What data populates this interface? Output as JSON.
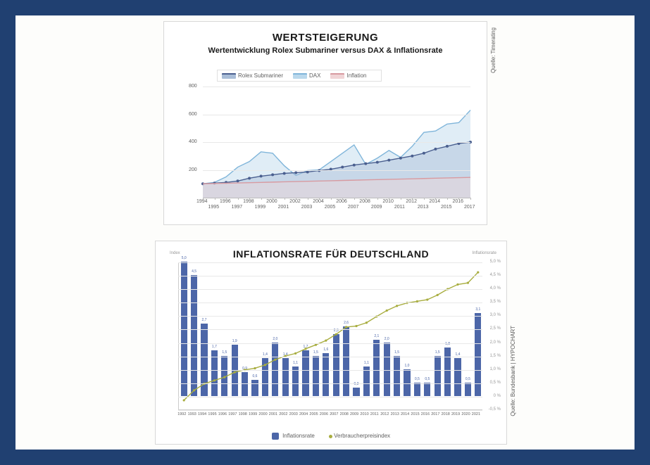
{
  "frame": {
    "border_color": "#204071",
    "bg": "#fdfdfb"
  },
  "top_chart": {
    "type": "area",
    "title": "WERTSTEIGERUNG",
    "subtitle": "Wertentwicklung Rolex Submariner versus DAX & Inflationsrate",
    "source": "Quelle: Timerating",
    "ylim": [
      0,
      800
    ],
    "yticks": [
      200,
      400,
      600,
      800
    ],
    "years": [
      1994,
      1995,
      1996,
      1997,
      1998,
      1999,
      2000,
      2001,
      2002,
      2003,
      2004,
      2005,
      2006,
      2007,
      2008,
      2009,
      2010,
      2011,
      2012,
      2013,
      2014,
      2015,
      2016,
      2017
    ],
    "series": [
      {
        "name": "Rolex Submariner",
        "color_line": "#4a5f8f",
        "color_fill": "#a9bdd7",
        "values": [
          100,
          105,
          110,
          120,
          140,
          155,
          165,
          175,
          180,
          185,
          195,
          205,
          220,
          235,
          245,
          255,
          270,
          285,
          300,
          320,
          350,
          370,
          390,
          400
        ],
        "markers": true
      },
      {
        "name": "DAX",
        "color_line": "#7fb5da",
        "color_fill": "#bad8ec",
        "values": [
          100,
          110,
          150,
          220,
          260,
          330,
          320,
          230,
          160,
          195,
          200,
          260,
          320,
          380,
          240,
          285,
          340,
          290,
          370,
          470,
          480,
          530,
          540,
          630
        ],
        "markers": false
      },
      {
        "name": "Inflation",
        "color_line": "#d89aa0",
        "color_fill": "#f0d4d6",
        "values": [
          100,
          102,
          104,
          106,
          108,
          110,
          112,
          114,
          116,
          118,
          120,
          122,
          124,
          126,
          128,
          130,
          132,
          134,
          136,
          138,
          140,
          142,
          144,
          146
        ],
        "markers": false
      }
    ],
    "legend_items": [
      "Rolex Submariner",
      "DAX",
      "Inflation"
    ],
    "background": "#ffffff",
    "grid_color": "#e8e8e8",
    "label_fontsize": 7,
    "title_fontsize": 15,
    "subtitle_fontsize": 11
  },
  "bot_chart": {
    "type": "bar+line",
    "title": "INFLATIONSRATE FÜR DEUTSCHLAND",
    "source": "Quelle: Bundesbank | HYPOCHART",
    "y_left_label": "Index",
    "y_right_label": "Inflationsrate",
    "y_right_lim": [
      -0.5,
      5.0
    ],
    "y_right_ticks": [
      "-0,5 %",
      "0 %",
      "0,5 %",
      "1,0 %",
      "1,5 %",
      "2,0 %",
      "2,5 %",
      "3,0 %",
      "3,5 %",
      "4,0 %",
      "4,5 %",
      "5,0 %"
    ],
    "years": [
      1992,
      1993,
      1994,
      1995,
      1996,
      1997,
      1998,
      1999,
      2000,
      2001,
      2002,
      2003,
      2004,
      2005,
      2006,
      2007,
      2008,
      2009,
      2010,
      2011,
      2012,
      2013,
      2014,
      2015,
      2016,
      2017,
      2018,
      2019,
      2020,
      2021
    ],
    "bars": {
      "name": "Inflationsrate",
      "color": "#4c66a8",
      "values": [
        5.0,
        4.5,
        2.7,
        1.7,
        1.5,
        1.9,
        0.9,
        0.6,
        1.4,
        2.0,
        1.4,
        1.1,
        1.7,
        1.5,
        1.6,
        2.3,
        2.6,
        0.3,
        1.1,
        2.1,
        2.0,
        1.5,
        1.0,
        0.5,
        0.5,
        1.5,
        1.8,
        1.4,
        0.5,
        3.1
      ],
      "bar_width": 0.64
    },
    "line": {
      "name": "Verbraucherpreisindex",
      "color": "#a8ad3f",
      "values": [
        66,
        69,
        71,
        72,
        73,
        74.5,
        75.2,
        75.7,
        76.7,
        78.3,
        79.4,
        80.2,
        81.6,
        82.8,
        84.1,
        86,
        88.2,
        88.5,
        89.5,
        91.4,
        93.2,
        94.6,
        95.5,
        96,
        96.5,
        97.9,
        99.7,
        101.1,
        101.6,
        104.8
      ],
      "marker": "circle"
    },
    "legend": {
      "bar": "Inflationsrate",
      "line": "Verbraucherpreisindex"
    },
    "background": "#ffffff",
    "grid_color": "#e8e8e8",
    "label_fontsize": 6,
    "title_fontsize": 14
  }
}
